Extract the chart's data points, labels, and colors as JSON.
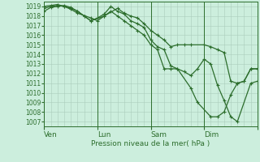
{
  "background_color": "#cceedd",
  "grid_color": "#aaccbb",
  "line_color": "#2d6e2d",
  "marker_color": "#2d6e2d",
  "xlabel": "Pression niveau de la mer( hPa )",
  "ylim": [
    1006.5,
    1019.5
  ],
  "yticks": [
    1007,
    1008,
    1009,
    1010,
    1011,
    1012,
    1013,
    1014,
    1015,
    1016,
    1017,
    1018,
    1019
  ],
  "xlim": [
    0,
    16
  ],
  "day_x": [
    0,
    4,
    8,
    12,
    16
  ],
  "day_labels": [
    "Ven",
    "Lun",
    "Sam",
    "Dim",
    ""
  ],
  "series1_x": [
    0,
    0.5,
    1.0,
    1.5,
    2.0,
    2.5,
    3.5,
    4.0,
    4.5,
    5.5,
    6.0,
    6.5,
    7.0,
    7.5,
    8.0,
    8.5,
    9.0,
    9.5,
    10.0,
    10.5,
    11.0,
    12.0,
    12.5,
    13.0,
    13.5,
    14.0,
    14.5,
    15.0,
    15.5,
    16.0
  ],
  "series1_y": [
    1019.0,
    1019.1,
    1019.2,
    1019.0,
    1018.7,
    1018.3,
    1017.8,
    1017.5,
    1018.0,
    1018.8,
    1018.3,
    1018.0,
    1017.8,
    1017.2,
    1016.5,
    1016.0,
    1015.5,
    1014.8,
    1015.0,
    1015.0,
    1015.0,
    1015.0,
    1014.8,
    1014.5,
    1014.2,
    1011.2,
    1011.0,
    1011.2,
    1012.5,
    1012.5
  ],
  "series2_x": [
    0,
    0.5,
    1.0,
    1.5,
    2.0,
    2.5,
    3.0,
    3.5,
    4.0,
    4.5,
    5.0,
    5.5,
    6.0,
    6.5,
    7.0,
    7.5,
    8.0,
    8.5,
    9.0,
    9.5,
    10.0,
    10.5,
    11.0,
    11.5,
    12.0,
    12.5,
    13.0,
    13.5,
    14.0,
    14.5,
    15.5,
    16.0
  ],
  "series2_y": [
    1018.8,
    1019.0,
    1019.1,
    1019.0,
    1018.8,
    1018.5,
    1018.0,
    1017.5,
    1017.8,
    1018.2,
    1019.0,
    1018.5,
    1018.2,
    1017.5,
    1017.2,
    1016.8,
    1015.5,
    1014.8,
    1014.5,
    1012.8,
    1012.5,
    1012.2,
    1011.8,
    1012.5,
    1013.5,
    1013.0,
    1010.8,
    1009.2,
    1007.5,
    1007.0,
    1011.0,
    1011.2
  ],
  "series3_x": [
    0,
    0.5,
    1.0,
    1.5,
    2.0,
    2.5,
    3.0,
    3.5,
    4.5,
    5.0,
    5.5,
    6.0,
    6.5,
    7.0,
    7.5,
    8.0,
    8.5,
    9.0,
    9.5,
    10.0,
    11.0,
    11.5,
    12.5,
    13.0,
    13.5,
    14.0,
    14.5,
    15.0,
    15.5,
    16.0
  ],
  "series3_y": [
    1018.5,
    1018.9,
    1019.0,
    1019.1,
    1018.9,
    1018.5,
    1018.0,
    1017.5,
    1018.0,
    1018.5,
    1018.0,
    1017.5,
    1017.0,
    1016.5,
    1016.0,
    1015.0,
    1014.5,
    1012.5,
    1012.5,
    1012.5,
    1010.5,
    1009.0,
    1007.5,
    1007.5,
    1008.0,
    1009.8,
    1011.0,
    1011.2,
    1012.5,
    1012.5
  ]
}
